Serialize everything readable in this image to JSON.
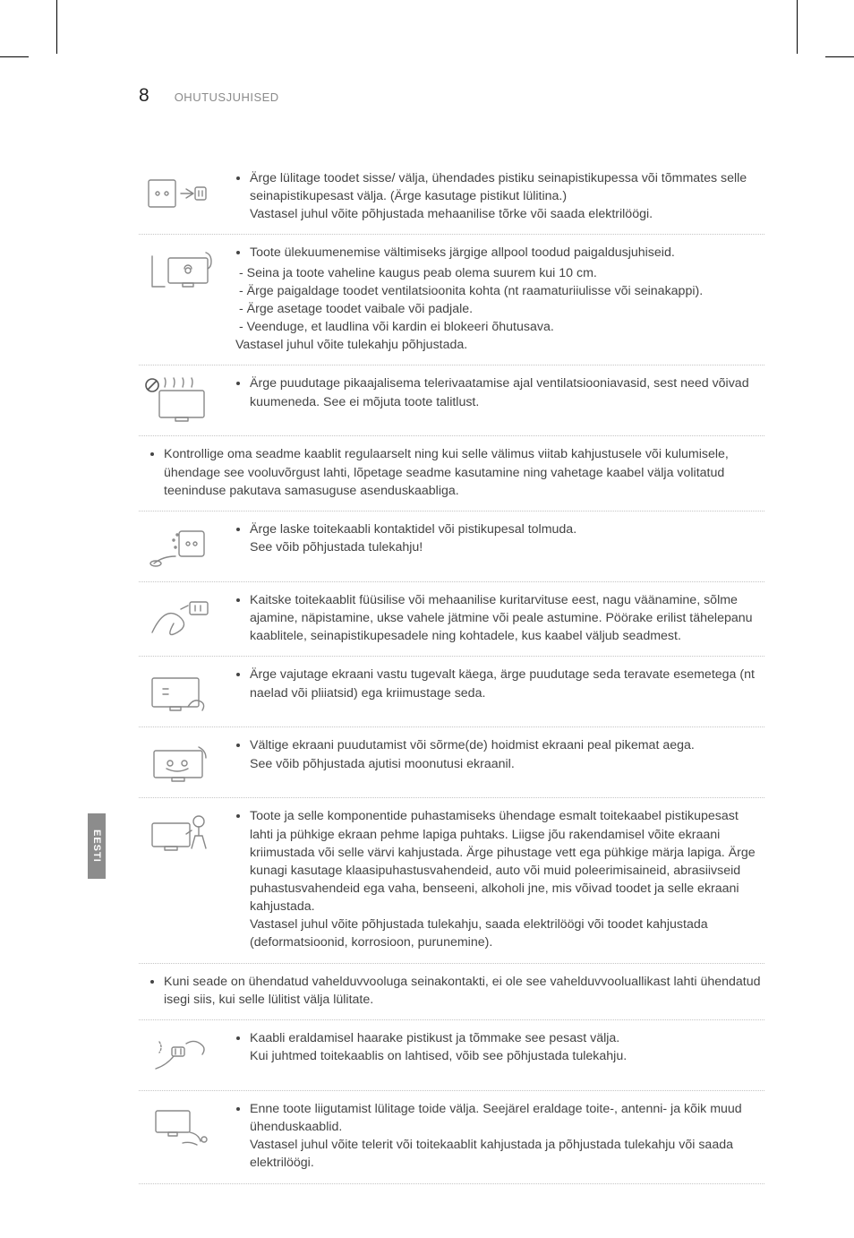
{
  "page_number": "8",
  "section_title": "OHUTUSJUHISED",
  "side_tab": "EESTI",
  "colors": {
    "text": "#444444",
    "muted": "#8a8a8a",
    "dotted_border": "#c5c5c5",
    "side_tab_bg": "#8c8c8c",
    "side_tab_text": "#ffffff",
    "background": "#ffffff"
  },
  "typography": {
    "body_fontsize": 14.2,
    "line_height": 1.42,
    "page_num_fontsize": 21,
    "section_title_fontsize": 13
  },
  "rows": [
    {
      "icon": "plug-socket",
      "bullets": [
        "Ärge lülitage toodet sisse/ välja, ühendades pistiku seinapistikupessa või tõmmates selle seinapistikupesast välja. (Ärge kasutage pistikut lülitina.)\nVastasel juhul võite põhjustada mehaanilise tõrke või saada elektrilöögi."
      ]
    },
    {
      "icon": "tv-wall",
      "bullets": [
        "Toote ülekuumenemise vältimiseks järgige allpool toodud paigaldusjuhiseid."
      ],
      "sub": [
        "Seina ja toote vaheline kaugus peab olema suurem kui 10 cm.",
        "Ärge paigaldage toodet ventilatsioonita kohta (nt raamaturiiulisse või seinakappi).",
        "Ärge asetage toodet vaibale või padjale.",
        "Veenduge, et laudlina või kardin ei blokeeri õhutusava."
      ],
      "tail": "Vastasel juhul võite tulekahju põhjustada."
    },
    {
      "icon": "tv-hot-vents",
      "prohibit": true,
      "bullets": [
        "Ärge puudutage pikaajalisema telerivaatamise ajal ventilatsiooniavasid, sest need võivad kuumeneda. See ei mõjuta toote talitlust."
      ]
    },
    {
      "full": true,
      "bullets": [
        "Kontrollige oma seadme kaablit regulaarselt ning kui selle välimus viitab kahjustusele või kulumisele, ühendage see vooluvõrgust lahti, lõpetage seadme kasutamine ning vahetage kaabel välja volitatud teeninduse pakutava samasuguse asenduskaabliga."
      ]
    },
    {
      "icon": "plug-dust",
      "bullets": [
        "Ärge laske toitekaabli kontaktidel või pistikupesal tolmuda.\nSee võib põhjustada tulekahju!"
      ]
    },
    {
      "icon": "cable-bend",
      "bullets": [
        "Kaitske toitekaablit füüsilise või mehaanilise kuritarvituse eest, nagu väänamine, sõlme ajamine, näpistamine, ukse vahele jätmine või peale astumine. Pöörake erilist tähelepanu kaablitele, seinapistikupesadele ning kohtadele, kus kaabel väljub seadmest."
      ]
    },
    {
      "icon": "hand-screen",
      "bullets": [
        "Ärge vajutage ekraani vastu tugevalt käega, ärge puudutage seda teravate esemetega (nt naelad või pliiatsid) ega kriimustage seda."
      ]
    },
    {
      "icon": "finger-hold",
      "bullets": [
        "Vältige ekraani puudutamist või sõrme(de) hoidmist ekraani peal pikemat aega.\nSee võib põhjustada ajutisi moonutusi ekraanil."
      ]
    },
    {
      "icon": "cleaning",
      "bullets": [
        "Toote ja selle komponentide puhastamiseks ühendage esmalt toitekaabel pistikupesast lahti ja pühkige ekraan pehme lapiga puhtaks. Liigse jõu rakendamisel võite ekraani kriimustada või selle värvi kahjustada. Ärge pihustage vett ega pühkige märja lapiga. Ärge kunagi kasutage klaasipuhastusvahendeid, auto või muid poleerimisaineid, abrasiivseid puhastusvahendeid ega vaha, benseeni, alkoholi jne, mis võivad toodet ja selle ekraani kahjustada.\nVastasel juhul võite põhjustada tulekahju, saada elektrilöögi või toodet kahjustada (deformatsioonid, korrosioon, purunemine)."
      ]
    },
    {
      "full": true,
      "bullets": [
        "Kuni seade on ühendatud vahelduvvooluga seinakontakti, ei ole see vahelduvvooluallikast lahti ühendatud isegi siis, kui selle lülitist välja lülitate."
      ]
    },
    {
      "icon": "unplug-pull",
      "bullets": [
        "Kaabli eraldamisel haarake pistikust ja tõmmake see pesast välja.\nKui juhtmed toitekaablis on lahtised, võib see põhjustada tulekahju."
      ]
    },
    {
      "icon": "move-tv",
      "bullets": [
        "Enne toote liigutamist lülitage toide välja. Seejärel eraldage toite-, antenni- ja kõik muud ühenduskaablid.\nVastasel juhul võite telerit või toitekaablit kahjustada ja põhjustada tulekahju või saada elektrilöögi."
      ]
    }
  ]
}
